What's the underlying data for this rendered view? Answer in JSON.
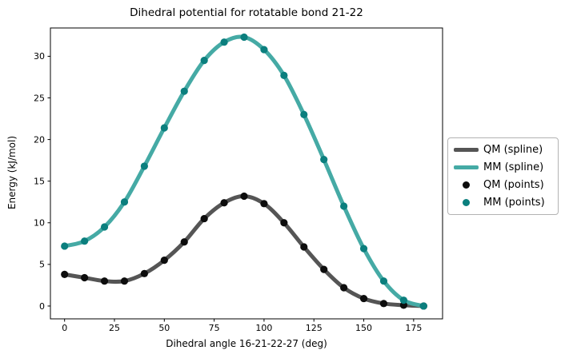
{
  "figure": {
    "title": "Dihedral potential for rotatable bond 21-22"
  },
  "chart_data": {
    "type": "line",
    "title": "Dihedral potential for rotatable bond 21-22",
    "xlabel": "Dihedral angle 16-21-22-27 (deg)",
    "ylabel": "Energy (kJ/mol)",
    "x": [
      0,
      10,
      20,
      30,
      40,
      50,
      60,
      70,
      80,
      90,
      100,
      110,
      120,
      130,
      140,
      150,
      160,
      170,
      180
    ],
    "series": [
      {
        "name": "QM (spline)",
        "kind": "spline",
        "color": "#555555",
        "values": [
          3.8,
          3.4,
          3.0,
          3.0,
          3.9,
          5.5,
          7.7,
          10.5,
          12.4,
          13.2,
          12.3,
          10.0,
          7.1,
          4.4,
          2.2,
          0.9,
          0.3,
          0.1,
          0.0
        ]
      },
      {
        "name": "MM (spline)",
        "kind": "spline",
        "color": "#45aaa5",
        "values": [
          7.2,
          7.8,
          9.5,
          12.5,
          16.8,
          21.4,
          25.8,
          29.5,
          31.7,
          32.3,
          30.8,
          27.7,
          23.0,
          17.6,
          12.0,
          6.9,
          3.0,
          0.7,
          0.0
        ]
      },
      {
        "name": "QM (points)",
        "kind": "scatter",
        "color": "#0d0d0d",
        "values": [
          3.8,
          3.4,
          3.0,
          3.0,
          3.9,
          5.5,
          7.7,
          10.5,
          12.4,
          13.2,
          12.3,
          10.0,
          7.1,
          4.4,
          2.2,
          0.9,
          0.3,
          0.1,
          0.0
        ]
      },
      {
        "name": "MM (points)",
        "kind": "scatter",
        "color": "#0b7f7e",
        "values": [
          7.2,
          7.8,
          9.5,
          12.5,
          16.8,
          21.4,
          25.8,
          29.5,
          31.7,
          32.3,
          30.8,
          27.7,
          23.0,
          17.6,
          12.0,
          6.9,
          3.0,
          0.7,
          0.0
        ]
      }
    ],
    "xticks": [
      0,
      25,
      50,
      75,
      100,
      125,
      150,
      175
    ],
    "yticks": [
      0,
      5,
      10,
      15,
      20,
      25,
      30
    ],
    "xlim": [
      -7.1,
      189.5
    ],
    "ylim": [
      -1.54,
      33.4
    ],
    "grid": false,
    "legend_position": "outside center-right"
  },
  "legend": {
    "items": [
      {
        "label": "QM (spline)",
        "marker": "line",
        "color": "#555555"
      },
      {
        "label": "MM (spline)",
        "marker": "line",
        "color": "#45aaa5"
      },
      {
        "label": "QM (points)",
        "marker": "dot",
        "color": "#0d0d0d"
      },
      {
        "label": "MM (points)",
        "marker": "dot",
        "color": "#0b7f7e"
      }
    ]
  },
  "axis_colors": {
    "spine": "#000000",
    "tick_text": "#000000"
  }
}
